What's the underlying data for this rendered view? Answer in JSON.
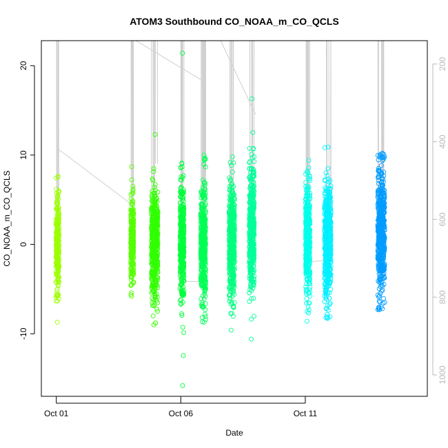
{
  "chart_data": {
    "type": "scatter",
    "title": "ATOM3 Southbound CO_NOAA_m_CO_QCLS",
    "xlabel": "Date",
    "ylabel": "CO_NOAA_m_CO_QCLS",
    "x_unit": "days since Sep 30 (Oct 01 = 1)",
    "xlim": [
      0.4,
      15.9
    ],
    "ylim": [
      -17,
      22.8
    ],
    "x_ticks": [
      {
        "value": 1,
        "label": "Oct 01"
      },
      {
        "value": 6,
        "label": "Oct 06"
      },
      {
        "value": 11,
        "label": "Oct 11"
      }
    ],
    "y_ticks": [
      {
        "value": -10,
        "label": "-10"
      },
      {
        "value": 0,
        "label": "0"
      },
      {
        "value": 10,
        "label": "10"
      },
      {
        "value": 20,
        "label": "20"
      }
    ],
    "right_axis": {
      "description": "pressure (inverted), grey",
      "lim": [
        1055,
        140
      ],
      "color": "#b8b8b8",
      "ticks": [
        {
          "value": 200,
          "label": "200"
        },
        {
          "value": 400,
          "label": "400"
        },
        {
          "value": 600,
          "label": "600"
        },
        {
          "value": 800,
          "label": "800"
        },
        {
          "value": 1000,
          "label": "1000"
        }
      ]
    },
    "marker": "open-circle",
    "grid": false,
    "legend": "none",
    "flight_groups": [
      {
        "x": 1.05,
        "width": 0.12,
        "y_min": -8.7,
        "y_max": 7.6,
        "core_min": -5.5,
        "core_max": 5.5,
        "color": "#9cff00"
      },
      {
        "x": 4.05,
        "width": 0.12,
        "y_min": -5.8,
        "y_max": 8.7,
        "core_min": -4.0,
        "core_max": 5.0,
        "color": "#55ff00"
      },
      {
        "x": 4.95,
        "width": 0.26,
        "y_min": -9.0,
        "y_max": 12.3,
        "core_min": -6.5,
        "core_max": 6.0,
        "color": "#30ff00"
      },
      {
        "x": 6.05,
        "width": 0.16,
        "y_min": -15.8,
        "y_max": 21.4,
        "core_min": -6.5,
        "core_max": 7.0,
        "color": "#00ff3a"
      },
      {
        "x": 6.9,
        "width": 0.2,
        "y_min": -8.7,
        "y_max": 10.0,
        "core_min": -6.5,
        "core_max": 7.0,
        "color": "#00ff55"
      },
      {
        "x": 8.05,
        "width": 0.22,
        "y_min": -9.6,
        "y_max": 9.8,
        "core_min": -6.0,
        "core_max": 6.5,
        "color": "#00ff80"
      },
      {
        "x": 8.85,
        "width": 0.2,
        "y_min": -10.6,
        "y_max": 16.3,
        "core_min": -5.5,
        "core_max": 9.0,
        "color": "#00ff9a"
      },
      {
        "x": 11.1,
        "width": 0.18,
        "y_min": -8.6,
        "y_max": 9.4,
        "core_min": -6.0,
        "core_max": 7.0,
        "color": "#00ffea"
      },
      {
        "x": 11.9,
        "width": 0.26,
        "y_min": -8.3,
        "y_max": 10.9,
        "core_min": -6.0,
        "core_max": 7.0,
        "color": "#00f0ff"
      },
      {
        "x": 14.05,
        "width": 0.28,
        "y_min": -7.3,
        "y_max": 10.2,
        "core_min": -6.0,
        "core_max": 8.5,
        "color": "#009cff"
      }
    ]
  }
}
